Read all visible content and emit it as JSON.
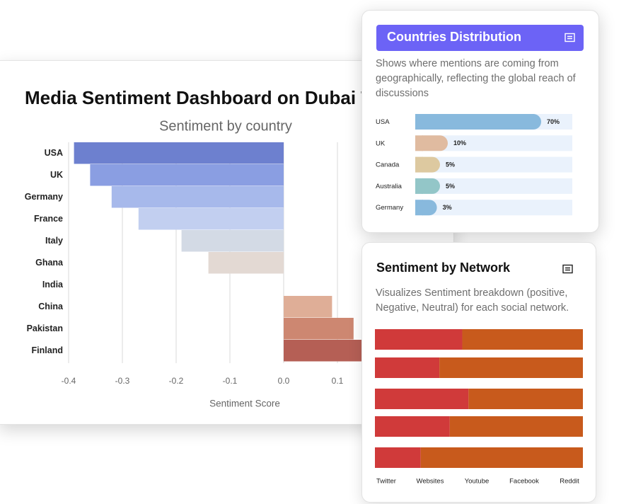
{
  "chart_data": [
    {
      "type": "bar",
      "title": "Media Sentiment Dashboard on Dubai T",
      "subtitle": "Sentiment by country",
      "x_label": "Sentiment Score",
      "categories": [
        "USA",
        "UK",
        "Germany",
        "France",
        "Italy",
        "Ghana",
        "India",
        "China",
        "Pakistan",
        "Finland"
      ],
      "values": [
        -0.39,
        -0.36,
        -0.32,
        -0.27,
        -0.19,
        -0.14,
        0,
        0.09,
        0.13,
        0.15
      ],
      "colors": [
        "#6d80cf",
        "#8a9ee2",
        "#a7b9eb",
        "#c2cff0",
        "#d3dae5",
        "#e3d9d3",
        "#e7cbbd",
        "#dfae97",
        "#cd8771",
        "#b55f55"
      ],
      "xlim": [
        -0.4,
        0.2
      ],
      "xticks": [
        -0.4,
        -0.3,
        -0.2,
        -0.1,
        {
          "value": 0,
          "label": "0.0"
        },
        0.1
      ],
      "grid": true
    },
    {
      "type": "progress_bar",
      "title": "Countries Distribution",
      "subtitle": "Shows where mentions are coming from geographically, reflecting the global reach of discussions",
      "categories": [
        "USA",
        "UK",
        "Canada",
        "Australia",
        "Germany"
      ],
      "values": [
        70,
        10,
        5,
        5,
        3
      ],
      "value_labels": [
        "70%",
        "10%",
        "5%",
        "5%",
        "3%"
      ],
      "colors": [
        "#88b9dd",
        "#e0bba0",
        "#ddc9a0",
        "#93c6c8",
        "#88b9dd"
      ],
      "track_color": "#eaf2fc",
      "header_color": "#6c63f6"
    },
    {
      "type": "stacked_bar",
      "title": "Sentiment by Network",
      "subtitle": "Visualizes Sentiment breakdown (positive, Negative, Neutral) for each social network.",
      "categories": [
        "Twitter",
        "Websites",
        "Youtube",
        "Facebook",
        "Reddit"
      ],
      "series": [
        {
          "color": "#d03a3a",
          "values": [
            42,
            31,
            45,
            36,
            22
          ]
        },
        {
          "color": "#c85a1c",
          "values": [
            58,
            69,
            55,
            64,
            78
          ]
        }
      ],
      "xlim": [
        0,
        100
      ]
    }
  ]
}
